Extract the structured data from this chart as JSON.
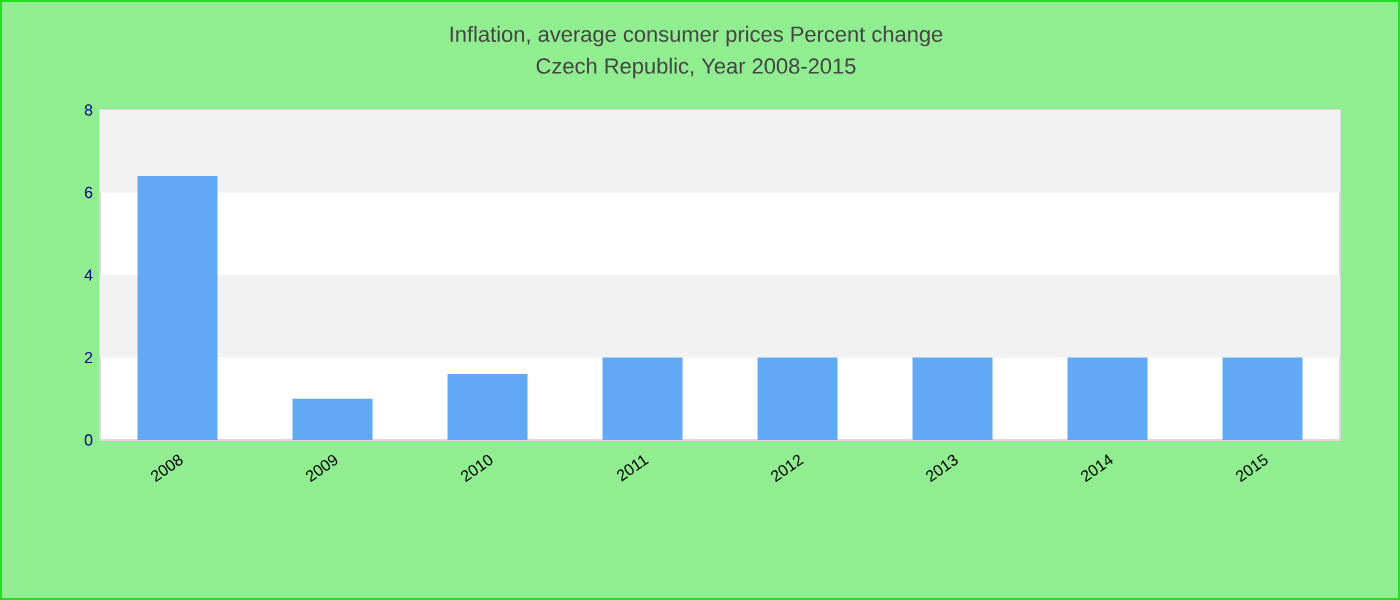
{
  "chart_data": {
    "type": "bar",
    "title": "Inflation, average consumer prices  Percent change",
    "subtitle": "Czech Republic, Year 2008-2015",
    "categories": [
      "2008",
      "2009",
      "2010",
      "2011",
      "2012",
      "2013",
      "2014",
      "2015"
    ],
    "values": [
      6.4,
      1.0,
      1.6,
      2.0,
      2.0,
      2.0,
      2.0,
      2.0
    ],
    "color": "#61a9f5",
    "ylim": [
      0,
      8
    ],
    "yticks": [
      0,
      2,
      4,
      6,
      8
    ],
    "bands": [
      {
        "axis": "y",
        "from": 2,
        "to": 4,
        "color": "#f2f2f2"
      },
      {
        "axis": "y",
        "from": 6,
        "to": 8,
        "color": "#f2f2f2"
      }
    ]
  }
}
